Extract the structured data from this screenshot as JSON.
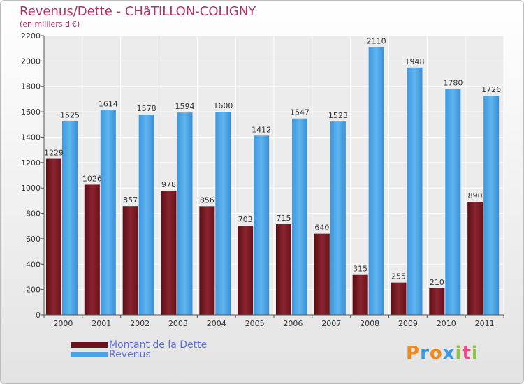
{
  "title": "Revenus/Dette - CHâTILLON-COLIGNY",
  "subtitle": "(en milliers d'€)",
  "brand": "Proxiti",
  "chart_data": {
    "type": "bar",
    "categories": [
      "2000",
      "2001",
      "2002",
      "2003",
      "2004",
      "2005",
      "2006",
      "2007",
      "2008",
      "2009",
      "2010",
      "2011"
    ],
    "series": [
      {
        "name": "Montant de la Dette",
        "values": [
          1229,
          1026,
          857,
          978,
          856,
          703,
          715,
          640,
          315,
          255,
          210,
          890
        ],
        "color": "#7a1a24"
      },
      {
        "name": "Revenus",
        "values": [
          1525,
          1614,
          1578,
          1594,
          1600,
          1412,
          1547,
          1523,
          2110,
          1948,
          1780,
          1726
        ],
        "color": "#4aa3e6"
      }
    ],
    "ylim": [
      0,
      2200
    ],
    "yticks": [
      0,
      200,
      400,
      600,
      800,
      1000,
      1200,
      1400,
      1600,
      1800,
      2000,
      2200
    ],
    "grid": true,
    "legend_position": "bottom-left"
  }
}
